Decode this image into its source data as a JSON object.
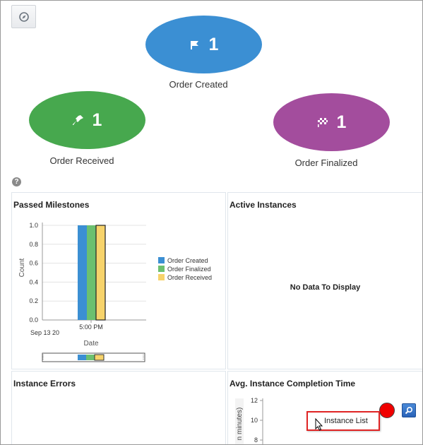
{
  "milestones": [
    {
      "name": "Order Created",
      "count": "1",
      "icon": "flag-icon",
      "color": "#3b8fd3"
    },
    {
      "name": "Order Received",
      "count": "1",
      "icon": "pin-icon",
      "color": "#47a84e"
    },
    {
      "name": "Order Finalized",
      "count": "1",
      "icon": "checkered-flag-icon",
      "color": "#a34d9d"
    }
  ],
  "help_icon": "?",
  "panels": {
    "passed_milestones": {
      "title": "Passed Milestones"
    },
    "active_instances": {
      "title": "Active Instances",
      "empty_text": "No Data To Display"
    },
    "instance_errors": {
      "title": "Instance Errors"
    },
    "avg_completion": {
      "title": "Avg. Instance Completion Time",
      "ylabel_partial": "n minutes)"
    }
  },
  "tooltip": {
    "text": "Instance List"
  },
  "chart_data": [
    {
      "type": "bar",
      "title": "",
      "xlabel": "Date",
      "ylabel": "Count",
      "categories": [
        "5:00 PM"
      ],
      "x_sublabel": "Sep 13 20",
      "ylim": [
        0,
        1.0
      ],
      "yticks": [
        "1.0",
        "0.8",
        "0.6",
        "0.4",
        "0.2",
        "0.0"
      ],
      "series": [
        {
          "name": "Order Created",
          "values": [
            1
          ],
          "color": "#3b8fd3"
        },
        {
          "name": "Order Finalized",
          "values": [
            1
          ],
          "color": "#6cc06f"
        },
        {
          "name": "Order Received",
          "values": [
            1
          ],
          "color": "#f7d36b"
        }
      ],
      "legend": "right",
      "grid": true
    },
    {
      "type": "bar",
      "title": "",
      "ylabel": "n minutes)",
      "yticks": [
        "12",
        "10",
        "8"
      ],
      "ylim": [
        8,
        12
      ],
      "series": []
    }
  ]
}
